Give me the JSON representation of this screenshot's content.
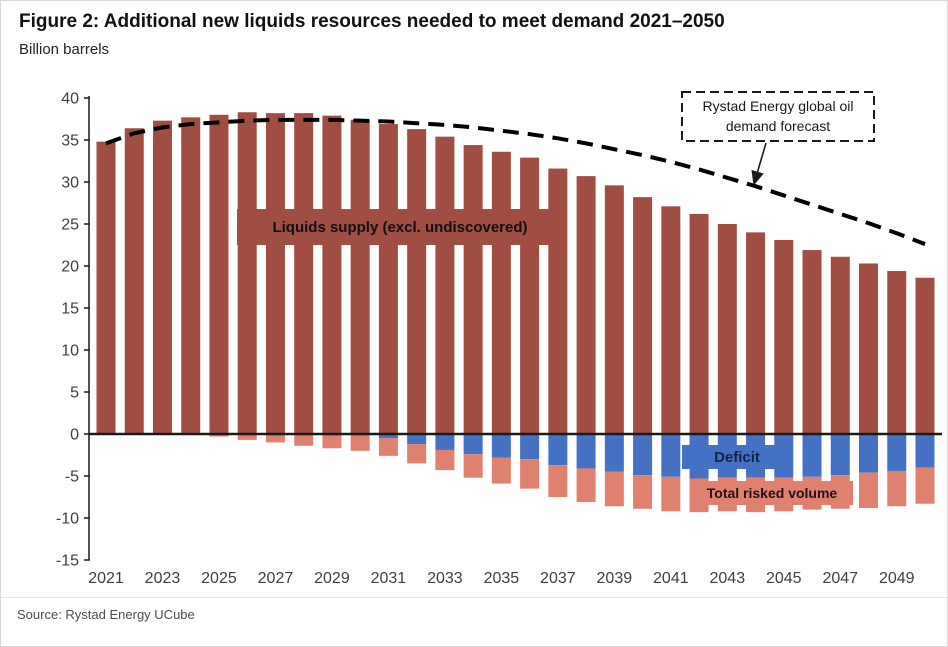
{
  "figure": {
    "title": "Figure 2: Additional new liquids resources needed to meet demand 2021–2050",
    "subtitle": "Billion barrels",
    "source": "Source: Rystad Energy UCube"
  },
  "labels": {
    "supply": "Liquids supply (excl. undiscovered)",
    "deficit": "Deficit",
    "risked": "Total risked volume",
    "annotation_line1": "Rystad Energy global oil",
    "annotation_line2": "demand forecast"
  },
  "colors": {
    "supply": "#A04D42",
    "deficit": "#4471C4",
    "risked": "#E0806F",
    "demand_line": "#000000",
    "axis": "#262626"
  },
  "chart_data": {
    "type": "bar",
    "title": "Figure 2: Additional new liquids resources needed to meet demand 2021–2050",
    "ylabel": "Billion barrels",
    "xlabel": "",
    "ylim": [
      -15,
      40
    ],
    "ytick_step": 5,
    "grid": false,
    "legend_position": "in-plot labels",
    "categories": [
      2021,
      2022,
      2023,
      2024,
      2025,
      2026,
      2027,
      2028,
      2029,
      2030,
      2031,
      2032,
      2033,
      2034,
      2035,
      2036,
      2037,
      2038,
      2039,
      2040,
      2041,
      2042,
      2043,
      2044,
      2045,
      2046,
      2047,
      2048,
      2049,
      2050
    ],
    "xtick_labels": [
      "2021",
      "2023",
      "2025",
      "2027",
      "2029",
      "2031",
      "2033",
      "2035",
      "2037",
      "2039",
      "2041",
      "2043",
      "2045",
      "2047",
      "2049"
    ],
    "series": [
      {
        "name": "Liquids supply (excl. undiscovered)",
        "kind": "bar",
        "values": [
          34.8,
          36.4,
          37.3,
          37.7,
          38.0,
          38.3,
          38.2,
          38.2,
          37.9,
          37.4,
          36.9,
          36.3,
          35.4,
          34.4,
          33.6,
          32.9,
          31.6,
          30.7,
          29.6,
          28.2,
          27.1,
          26.2,
          25.0,
          24.0,
          23.1,
          21.9,
          21.1,
          20.3,
          19.4,
          18.6
        ]
      },
      {
        "name": "Deficit",
        "kind": "bar",
        "values": [
          0,
          0,
          0,
          0,
          0,
          0,
          0,
          0,
          0,
          0,
          -0.5,
          -1.2,
          -1.9,
          -2.4,
          -2.8,
          -3.0,
          -3.7,
          -4.1,
          -4.5,
          -4.9,
          -5.1,
          -5.3,
          -5.2,
          -5.2,
          -5.2,
          -5.1,
          -4.9,
          -4.6,
          -4.4,
          -4.0
        ]
      },
      {
        "name": "Total risked volume",
        "kind": "bar",
        "values": [
          0,
          0,
          0,
          0,
          -0.3,
          -0.7,
          -1.0,
          -1.4,
          -1.7,
          -2.0,
          -2.1,
          -2.3,
          -2.4,
          -2.8,
          -3.1,
          -3.5,
          -3.8,
          -4.0,
          -4.1,
          -4.0,
          -4.1,
          -4.0,
          -4.0,
          -4.1,
          -4.0,
          -3.9,
          -4.0,
          -4.2,
          -4.2,
          -4.3
        ]
      },
      {
        "name": "Rystad Energy global oil demand forecast",
        "kind": "dashed-line",
        "values": [
          34.6,
          35.8,
          36.5,
          36.9,
          37.1,
          37.3,
          37.4,
          37.4,
          37.4,
          37.3,
          37.2,
          37.0,
          36.8,
          36.5,
          36.1,
          35.7,
          35.2,
          34.6,
          33.9,
          33.2,
          32.4,
          31.5,
          30.5,
          29.5,
          28.4,
          27.3,
          26.2,
          25.1,
          23.9,
          22.6
        ]
      }
    ]
  }
}
